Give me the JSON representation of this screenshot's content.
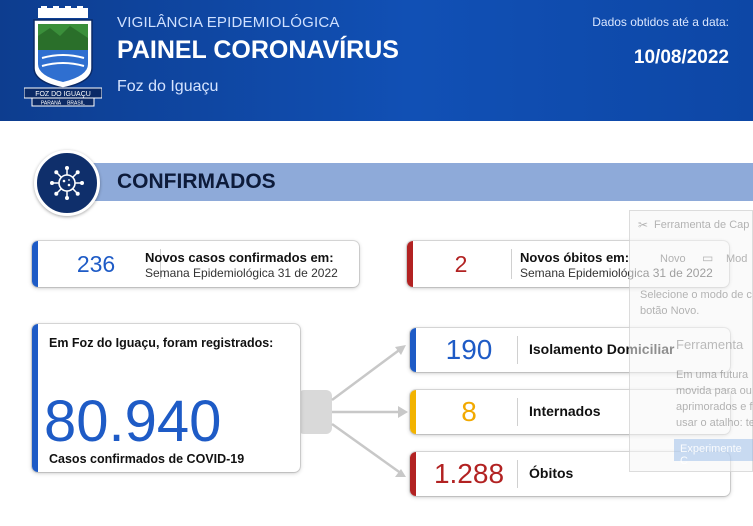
{
  "header": {
    "kicker": "VIGILÂNCIA EPIDEMIOLÓGICA",
    "title": "PAINEL CORONAVÍRUS",
    "city": "Foz do Iguaçu",
    "date_label": "Dados obtidos até a data:",
    "date_value": "10/08/2022",
    "crest_text": "FOZ DO IGUAÇU",
    "crest_state": "PARANÁ",
    "crest_country": "BRASIL"
  },
  "section": {
    "title": "CONFIRMADOS",
    "icon": "virus-icon"
  },
  "new_cases": {
    "value": "236",
    "label": "Novos casos confirmados em:",
    "sub": "Semana Epidemiológica 31 de 2022",
    "accent": "#1e5bc6"
  },
  "new_deaths": {
    "value": "2",
    "label": "Novos óbitos em:",
    "sub": "Semana Epidemiológica 31 de 2022",
    "accent": "#b22222"
  },
  "total": {
    "intro": "Em Foz do Iguaçu, foram registrados:",
    "value": "80.940",
    "label": "Casos confirmados de COVID-19",
    "accent": "#1e5bc6"
  },
  "breakdown": [
    {
      "value": "190",
      "label": "Isolamento Domiciliar",
      "accent": "#1e5bc6",
      "value_color": "#1e5bc6"
    },
    {
      "value": "8",
      "label": "Internados",
      "accent": "#f2b300",
      "value_color": "#f2a900"
    },
    {
      "value": "1.288",
      "label": "Óbitos",
      "accent": "#b22222",
      "value_color": "#b22222"
    }
  ],
  "overlay": {
    "title": "Ferramenta de Cap",
    "new_label": "Novo",
    "mode_label": "Mod",
    "line1": "Selecione o modo de c",
    "line2": "botão Novo.",
    "section": "Ferramenta",
    "p1": "Em uma futura",
    "p2": "movida para ou",
    "p3": "aprimorados e f",
    "p4": "usar o atalho: te",
    "button": "Experimente C"
  }
}
